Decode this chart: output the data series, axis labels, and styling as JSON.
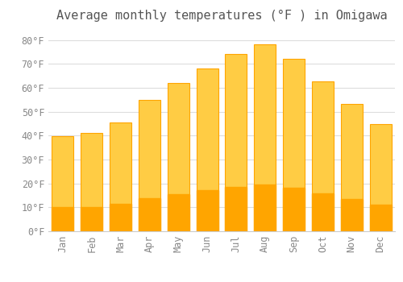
{
  "title": "Average monthly temperatures (°F ) in Omigawa",
  "months": [
    "Jan",
    "Feb",
    "Mar",
    "Apr",
    "May",
    "Jun",
    "Jul",
    "Aug",
    "Sep",
    "Oct",
    "Nov",
    "Dec"
  ],
  "values": [
    39.9,
    41.0,
    45.7,
    54.9,
    62.2,
    68.2,
    74.1,
    78.1,
    72.3,
    62.8,
    53.4,
    44.8
  ],
  "bar_color_top": "#FFCC44",
  "bar_color_bottom": "#FFA500",
  "bar_edge_color": "#FFA500",
  "background_color": "#FFFFFF",
  "plot_bg_color": "#FFFFFF",
  "grid_color": "#DDDDDD",
  "text_color": "#888888",
  "title_color": "#555555",
  "ylim": [
    0,
    85
  ],
  "yticks": [
    0,
    10,
    20,
    30,
    40,
    50,
    60,
    70,
    80
  ],
  "title_fontsize": 11,
  "tick_fontsize": 8.5,
  "bar_width": 0.75
}
